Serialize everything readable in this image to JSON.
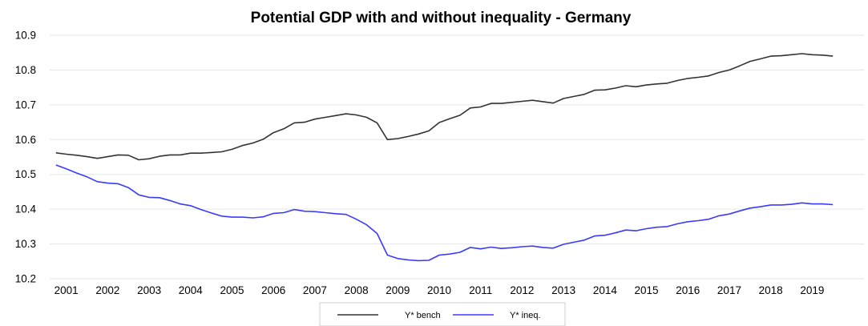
{
  "chart_data": {
    "type": "line",
    "title": "Potential GDP with and without inequality - Germany",
    "xlabel": "",
    "ylabel": "",
    "ylim": [
      10.2,
      10.9
    ],
    "yticks": [
      "10.2",
      "10.3",
      "10.4",
      "10.5",
      "10.6",
      "10.7",
      "10.8",
      "10.9"
    ],
    "xlim": [
      2000.6,
      2020.25
    ],
    "xticks": [
      "2001",
      "2002",
      "2003",
      "2004",
      "2005",
      "2006",
      "2007",
      "2008",
      "2009",
      "2010",
      "2011",
      "2012",
      "2013",
      "2014",
      "2015",
      "2016",
      "2017",
      "2018",
      "2019"
    ],
    "grid": "horizontal",
    "legend_position": "bottom",
    "series": [
      {
        "name": "Y* bench",
        "color": "#333333",
        "x": [
          2000.75,
          2001.0,
          2001.25,
          2001.5,
          2001.75,
          2002.0,
          2002.25,
          2002.5,
          2002.75,
          2003.0,
          2003.25,
          2003.5,
          2003.75,
          2004.0,
          2004.25,
          2004.5,
          2004.75,
          2005.0,
          2005.25,
          2005.5,
          2005.75,
          2006.0,
          2006.25,
          2006.5,
          2006.75,
          2007.0,
          2007.25,
          2007.5,
          2007.75,
          2008.0,
          2008.25,
          2008.5,
          2008.75,
          2009.0,
          2009.25,
          2009.5,
          2009.75,
          2010.0,
          2010.25,
          2010.5,
          2010.75,
          2011.0,
          2011.25,
          2011.5,
          2011.75,
          2012.0,
          2012.25,
          2012.5,
          2012.75,
          2013.0,
          2013.25,
          2013.5,
          2013.75,
          2014.0,
          2014.25,
          2014.5,
          2014.75,
          2015.0,
          2015.25,
          2015.5,
          2015.75,
          2016.0,
          2016.25,
          2016.5,
          2016.75,
          2017.0,
          2017.25,
          2017.5,
          2017.75,
          2018.0,
          2018.25,
          2018.5,
          2018.75,
          2019.0,
          2019.25,
          2019.5
        ],
        "values": [
          10.562,
          10.558,
          10.555,
          10.551,
          10.546,
          10.551,
          10.556,
          10.555,
          10.542,
          10.545,
          10.552,
          10.556,
          10.556,
          10.561,
          10.561,
          10.563,
          10.565,
          10.572,
          10.583,
          10.59,
          10.601,
          10.62,
          10.631,
          10.648,
          10.65,
          10.659,
          10.664,
          10.669,
          10.674,
          10.671,
          10.664,
          10.648,
          10.6,
          10.603,
          10.609,
          10.616,
          10.625,
          10.649,
          10.66,
          10.67,
          10.691,
          10.694,
          10.704,
          10.704,
          10.707,
          10.71,
          10.713,
          10.709,
          10.705,
          10.718,
          10.724,
          10.73,
          10.742,
          10.743,
          10.748,
          10.755,
          10.752,
          10.757,
          10.76,
          10.762,
          10.77,
          10.776,
          10.779,
          10.783,
          10.793,
          10.8,
          10.812,
          10.825,
          10.832,
          10.84,
          10.841,
          10.844,
          10.847,
          10.844,
          10.843,
          10.84
        ]
      },
      {
        "name": "Y* ineq.",
        "color": "#3a3aff",
        "x": [
          2000.75,
          2001.0,
          2001.25,
          2001.5,
          2001.75,
          2002.0,
          2002.25,
          2002.5,
          2002.75,
          2003.0,
          2003.25,
          2003.5,
          2003.75,
          2004.0,
          2004.25,
          2004.5,
          2004.75,
          2005.0,
          2005.25,
          2005.5,
          2005.75,
          2006.0,
          2006.25,
          2006.5,
          2006.75,
          2007.0,
          2007.25,
          2007.5,
          2007.75,
          2008.0,
          2008.25,
          2008.5,
          2008.75,
          2009.0,
          2009.25,
          2009.5,
          2009.75,
          2010.0,
          2010.25,
          2010.5,
          2010.75,
          2011.0,
          2011.25,
          2011.5,
          2011.75,
          2012.0,
          2012.25,
          2012.5,
          2012.75,
          2013.0,
          2013.25,
          2013.5,
          2013.75,
          2014.0,
          2014.25,
          2014.5,
          2014.75,
          2015.0,
          2015.25,
          2015.5,
          2015.75,
          2016.0,
          2016.25,
          2016.5,
          2016.75,
          2017.0,
          2017.25,
          2017.5,
          2017.75,
          2018.0,
          2018.25,
          2018.5,
          2018.75,
          2019.0,
          2019.25,
          2019.5
        ],
        "values": [
          10.527,
          10.516,
          10.504,
          10.493,
          10.479,
          10.475,
          10.473,
          10.462,
          10.441,
          10.434,
          10.433,
          10.425,
          10.415,
          10.41,
          10.399,
          10.389,
          10.38,
          10.377,
          10.377,
          10.375,
          10.378,
          10.388,
          10.39,
          10.399,
          10.394,
          10.393,
          10.39,
          10.387,
          10.385,
          10.371,
          10.355,
          10.33,
          10.268,
          10.258,
          10.254,
          10.252,
          10.253,
          10.268,
          10.271,
          10.276,
          10.29,
          10.286,
          10.291,
          10.287,
          10.289,
          10.292,
          10.294,
          10.29,
          10.288,
          10.299,
          10.305,
          10.311,
          10.323,
          10.325,
          10.332,
          10.34,
          10.338,
          10.344,
          10.348,
          10.35,
          10.358,
          10.364,
          10.367,
          10.371,
          10.381,
          10.386,
          10.395,
          10.403,
          10.407,
          10.412,
          10.412,
          10.414,
          10.418,
          10.415,
          10.415,
          10.413
        ]
      }
    ]
  }
}
